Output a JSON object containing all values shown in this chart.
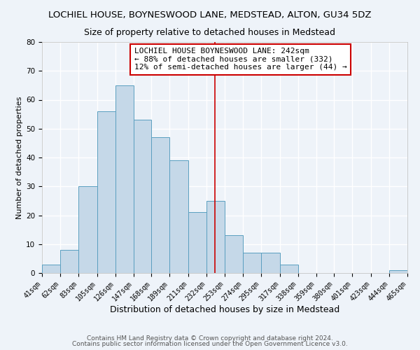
{
  "title": "LOCHIEL HOUSE, BOYNESWOOD LANE, MEDSTEAD, ALTON, GU34 5DZ",
  "subtitle": "Size of property relative to detached houses in Medstead",
  "xlabel": "Distribution of detached houses by size in Medstead",
  "ylabel": "Number of detached properties",
  "bar_left_edges": [
    41,
    62,
    83,
    105,
    126,
    147,
    168,
    189,
    211,
    232,
    253,
    274,
    295,
    317,
    338,
    359,
    380,
    401,
    423,
    444
  ],
  "bar_heights": [
    3,
    8,
    30,
    56,
    65,
    53,
    47,
    39,
    21,
    25,
    13,
    7,
    7,
    3,
    0,
    0,
    0,
    0,
    0,
    1
  ],
  "bar_widths": [
    21,
    21,
    22,
    21,
    21,
    21,
    21,
    22,
    21,
    21,
    21,
    21,
    22,
    21,
    21,
    21,
    21,
    22,
    21,
    21
  ],
  "tick_labels": [
    "41sqm",
    "62sqm",
    "83sqm",
    "105sqm",
    "126sqm",
    "147sqm",
    "168sqm",
    "189sqm",
    "211sqm",
    "232sqm",
    "253sqm",
    "274sqm",
    "295sqm",
    "317sqm",
    "338sqm",
    "359sqm",
    "380sqm",
    "401sqm",
    "423sqm",
    "444sqm",
    "465sqm"
  ],
  "ylim": [
    0,
    80
  ],
  "yticks": [
    0,
    10,
    20,
    30,
    40,
    50,
    60,
    70,
    80
  ],
  "bar_color": "#c5d8e8",
  "bar_edge_color": "#5a9fc0",
  "background_color": "#eef3f9",
  "grid_color": "#ffffff",
  "vline_x": 242,
  "vline_color": "#cc0000",
  "annotation_text": "LOCHIEL HOUSE BOYNESWOOD LANE: 242sqm\n← 88% of detached houses are smaller (332)\n12% of semi-detached houses are larger (44) →",
  "annotation_box_color": "#ffffff",
  "annotation_box_edge": "#cc0000",
  "footer_line1": "Contains HM Land Registry data © Crown copyright and database right 2024.",
  "footer_line2": "Contains public sector information licensed under the Open Government Licence v3.0.",
  "title_fontsize": 9.5,
  "subtitle_fontsize": 9,
  "xlabel_fontsize": 9,
  "ylabel_fontsize": 8,
  "tick_fontsize": 7,
  "annotation_fontsize": 8,
  "footer_fontsize": 6.5
}
